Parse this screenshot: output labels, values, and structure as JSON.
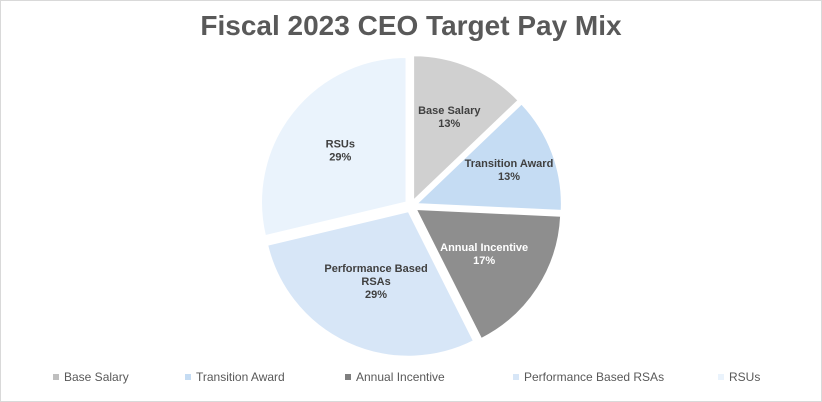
{
  "chart_data": {
    "type": "pie",
    "title": "Fiscal 2023 CEO Target Pay Mix",
    "slices": [
      {
        "label": "Base Salary",
        "label_lines": [
          "Base Salary"
        ],
        "value_label": "13%",
        "value": 13,
        "color": "#d0d0d0",
        "label_color": "#404040",
        "legend_color": "#bfbfbf"
      },
      {
        "label": "Transition Award",
        "label_lines": [
          "Transition Award"
        ],
        "value_label": "13%",
        "value": 13,
        "color": "#c5dcf3",
        "label_color": "#404040",
        "legend_color": "#c5dcf3"
      },
      {
        "label": "Annual Incentive",
        "label_lines": [
          "Annual Incentive"
        ],
        "value_label": "17%",
        "value": 17,
        "color": "#8e8e8e",
        "label_color": "#ffffff",
        "legend_color": "#7f7f7f"
      },
      {
        "label": "Performance Based RSAs",
        "label_lines": [
          "Performance Based",
          "RSAs"
        ],
        "value_label": "29%",
        "value": 29,
        "color": "#d7e6f7",
        "label_color": "#404040",
        "legend_color": "#d7e6f7"
      },
      {
        "label": "RSUs",
        "label_lines": [
          "RSUs"
        ],
        "value_label": "29%",
        "value": 29,
        "color": "#eaf3fc",
        "label_color": "#404040",
        "legend_color": "#eaf3fc"
      }
    ],
    "legend_position": "bottom"
  }
}
